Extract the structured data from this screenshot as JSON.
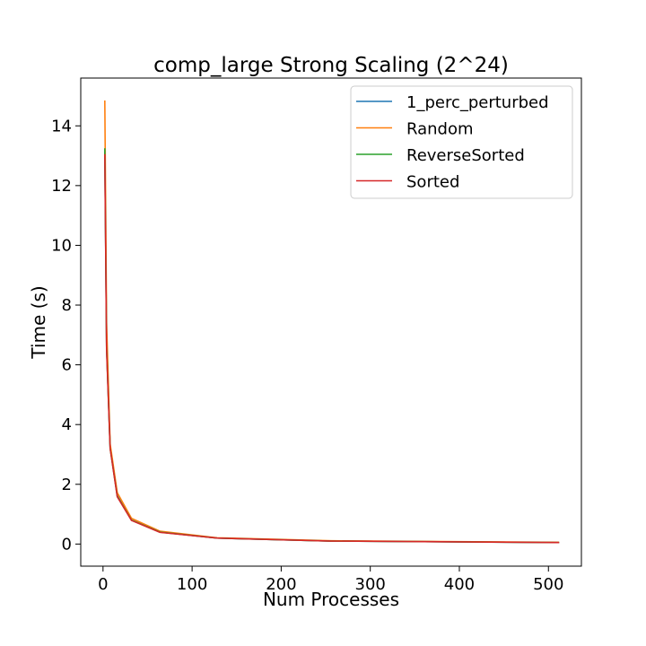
{
  "chart_data": {
    "type": "line",
    "title": "comp_large Strong Scaling (2^24)",
    "xlabel": "Num Processes",
    "ylabel": "Time (s)",
    "xlim": [
      -25,
      537
    ],
    "ylim": [
      -0.74,
      15.6
    ],
    "xticks": [
      0,
      100,
      200,
      300,
      400,
      500
    ],
    "yticks": [
      0,
      2,
      4,
      6,
      8,
      10,
      12,
      14
    ],
    "grid": false,
    "legend_position": "top-right",
    "x": [
      2,
      4,
      8,
      16,
      32,
      64,
      128,
      256,
      512
    ],
    "series": [
      {
        "name": "1_perc_perturbed",
        "color": "#1f77b4",
        "values": [
          13.15,
          6.6,
          3.25,
          1.62,
          0.8,
          0.4,
          0.2,
          0.1,
          0.05
        ]
      },
      {
        "name": "Random",
        "color": "#ff7f0e",
        "values": [
          14.85,
          7.4,
          3.35,
          1.72,
          0.86,
          0.43,
          0.21,
          0.11,
          0.06
        ]
      },
      {
        "name": "ReverseSorted",
        "color": "#2ca02c",
        "values": [
          13.25,
          6.6,
          3.2,
          1.6,
          0.8,
          0.4,
          0.2,
          0.1,
          0.05
        ]
      },
      {
        "name": "Sorted",
        "color": "#d62728",
        "values": [
          13.05,
          6.5,
          3.2,
          1.58,
          0.79,
          0.39,
          0.2,
          0.1,
          0.05
        ]
      }
    ]
  }
}
